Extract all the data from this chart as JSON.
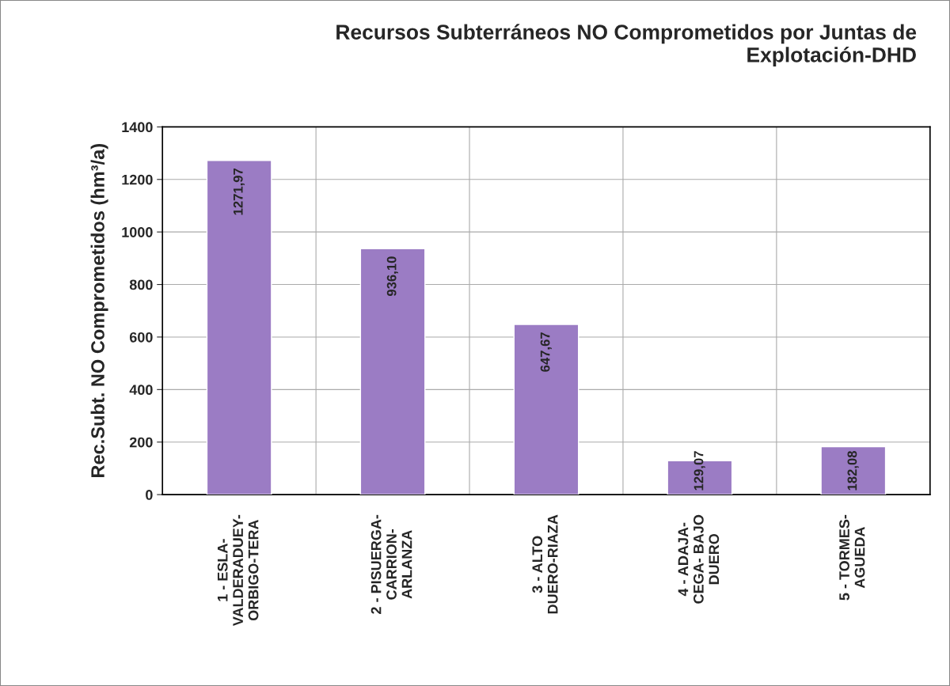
{
  "chart_data": {
    "type": "bar",
    "title": "Recursos Subterráneos NO Comprometidos por Juntas de\nExplotación-DHD",
    "ylabel": "Rec.Subt. NO Comprometidos (hm³/a)",
    "categories": [
      "1 - ESLA-\nVALDERADUEY-\nORBIGO-TERA",
      "2 - PISUERGA-\nCARRION-\nARLANZA",
      "3 - ALTO\nDUERO-RIAZA",
      "4 - ADAJA-\nCEGA- BAJO\nDUERO",
      "5 - TORMES-\nAGUEDA"
    ],
    "values": [
      1271.97,
      936.1,
      647.67,
      129.07,
      182.08
    ],
    "value_labels": [
      "1271,97",
      "936,10",
      "647,67",
      "129,07",
      "182,08"
    ],
    "color": "#9b7cc4",
    "ylim": [
      0,
      1400
    ],
    "yticks": [
      0,
      200,
      400,
      600,
      800,
      1000,
      1200,
      1400
    ],
    "grid": true
  }
}
